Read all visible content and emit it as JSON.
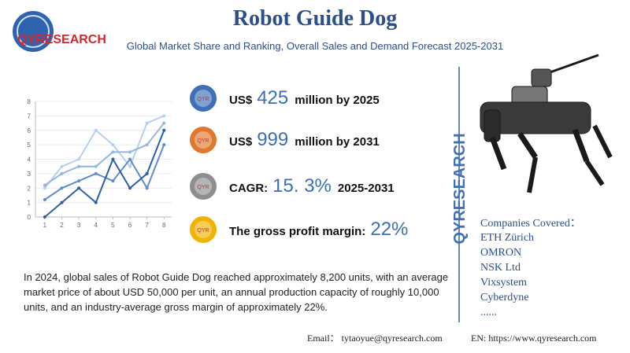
{
  "header": {
    "logo": "QYRESEARCH",
    "title": "Robot Guide Dog",
    "subtitle": "Global Market Share and Ranking, Overall Sales and Demand Forecast 2025-2031"
  },
  "icon_text": "QYR",
  "stats": [
    {
      "prefix": "US$",
      "value": "425",
      "suffix": "million by 2025",
      "color": "#3f6fb6"
    },
    {
      "prefix": "US$",
      "value": "999",
      "suffix": "million by 2031",
      "color": "#e0782f"
    },
    {
      "prefix": "CAGR:",
      "value": "15. 3%",
      "suffix": "2025-2031",
      "color": "#8e8e8e"
    },
    {
      "prefix": "The gross profit margin:",
      "value": "22%",
      "color": "#f0b400"
    }
  ],
  "chart_data": {
    "type": "line",
    "xlim": [
      0.45,
      8.45
    ],
    "ylim": [
      0,
      8
    ],
    "xticks": [
      1,
      2,
      3,
      4,
      5,
      6,
      7,
      8
    ],
    "yticks": [
      0,
      1,
      2,
      3,
      4,
      5,
      6,
      7,
      8
    ],
    "x": [
      1,
      2,
      3,
      4,
      5,
      6,
      7,
      8
    ],
    "series": [
      {
        "color": "#b8d0ee",
        "values": [
          2,
          3.5,
          4,
          6,
          5,
          3.5,
          6.5,
          7
        ]
      },
      {
        "color": "#94b6e0",
        "values": [
          2.2,
          3,
          3.5,
          3.5,
          4.5,
          4.5,
          5,
          6.5
        ]
      },
      {
        "color": "#5f8cc8",
        "values": [
          1.2,
          2,
          2.5,
          3,
          2.5,
          4,
          2,
          5
        ]
      },
      {
        "color": "#2f5ea6",
        "values": [
          0,
          1,
          2,
          1,
          4,
          2,
          3,
          6
        ]
      }
    ]
  },
  "description": "In 2024, global sales of Robot Guide Dog reached approximately 8,200 units, with an average market price of about USD 50,000 per unit, an annual production capacity of roughly 10,000 units, and an industry-average gross margin of approximately 22%.",
  "side_brand": "QYRESEARCH",
  "companies": {
    "heading": "Companies Covered：",
    "items": [
      "ETH Zürich",
      "OMRON",
      "NSK Ltd",
      "Vixsystem",
      "Cyberdyne",
      "......"
    ]
  },
  "footer": {
    "email": "Email： tytaoyue@qyresearch.com",
    "web": "EN: https://www.qyresearch.com"
  }
}
